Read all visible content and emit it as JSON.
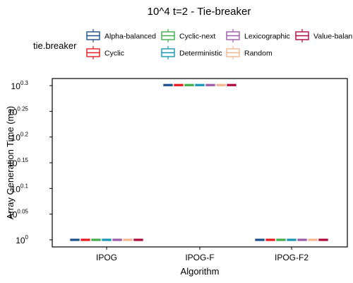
{
  "chart_data": {
    "type": "boxplot",
    "title": "10^4 t=2 - Tie-breaker",
    "xlabel": "Algorithm",
    "ylabel": "Array Generation Time (ms)",
    "y_scale": "log10",
    "ylim_exponent": [
      0,
      0.3
    ],
    "y_ticks": [
      {
        "exp": 0,
        "base": "10",
        "sup": "0"
      },
      {
        "exp": 0.05,
        "base": "10",
        "sup": "0.05"
      },
      {
        "exp": 0.1,
        "base": "10",
        "sup": "0.1"
      },
      {
        "exp": 0.15,
        "base": "10",
        "sup": "0.15"
      },
      {
        "exp": 0.2,
        "base": "10",
        "sup": "0.2"
      },
      {
        "exp": 0.25,
        "base": "10",
        "sup": "0.25"
      },
      {
        "exp": 0.3,
        "base": "10",
        "sup": "0.3"
      }
    ],
    "categories": [
      "IPOG",
      "IPOG-F",
      "IPOG-F2"
    ],
    "legend": {
      "title": "tie.breaker",
      "position": "top",
      "items": [
        {
          "name": "Alpha-balanced",
          "color": "#1a4f8b"
        },
        {
          "name": "Cyclic",
          "color": "#e8191c"
        },
        {
          "name": "Cyclic-next",
          "color": "#3fae49"
        },
        {
          "name": "Deterministic",
          "color": "#1596b5"
        },
        {
          "name": "Lexicographic",
          "color": "#9b5ba8"
        },
        {
          "name": "Random",
          "color": "#f3b78f"
        },
        {
          "name": "Value-balan",
          "color": "#b0073a"
        }
      ]
    },
    "series": [
      {
        "name": "Alpha-balanced",
        "values": [
          1,
          2,
          1
        ]
      },
      {
        "name": "Cyclic",
        "values": [
          1,
          2,
          1
        ]
      },
      {
        "name": "Cyclic-next",
        "values": [
          1,
          2,
          1
        ]
      },
      {
        "name": "Deterministic",
        "values": [
          1,
          2,
          1
        ]
      },
      {
        "name": "Lexicographic",
        "values": [
          1,
          2,
          1
        ]
      },
      {
        "name": "Random",
        "values": [
          1,
          2,
          1
        ]
      },
      {
        "name": "Value-balan",
        "values": [
          1,
          2,
          1
        ]
      }
    ],
    "grid": false
  }
}
